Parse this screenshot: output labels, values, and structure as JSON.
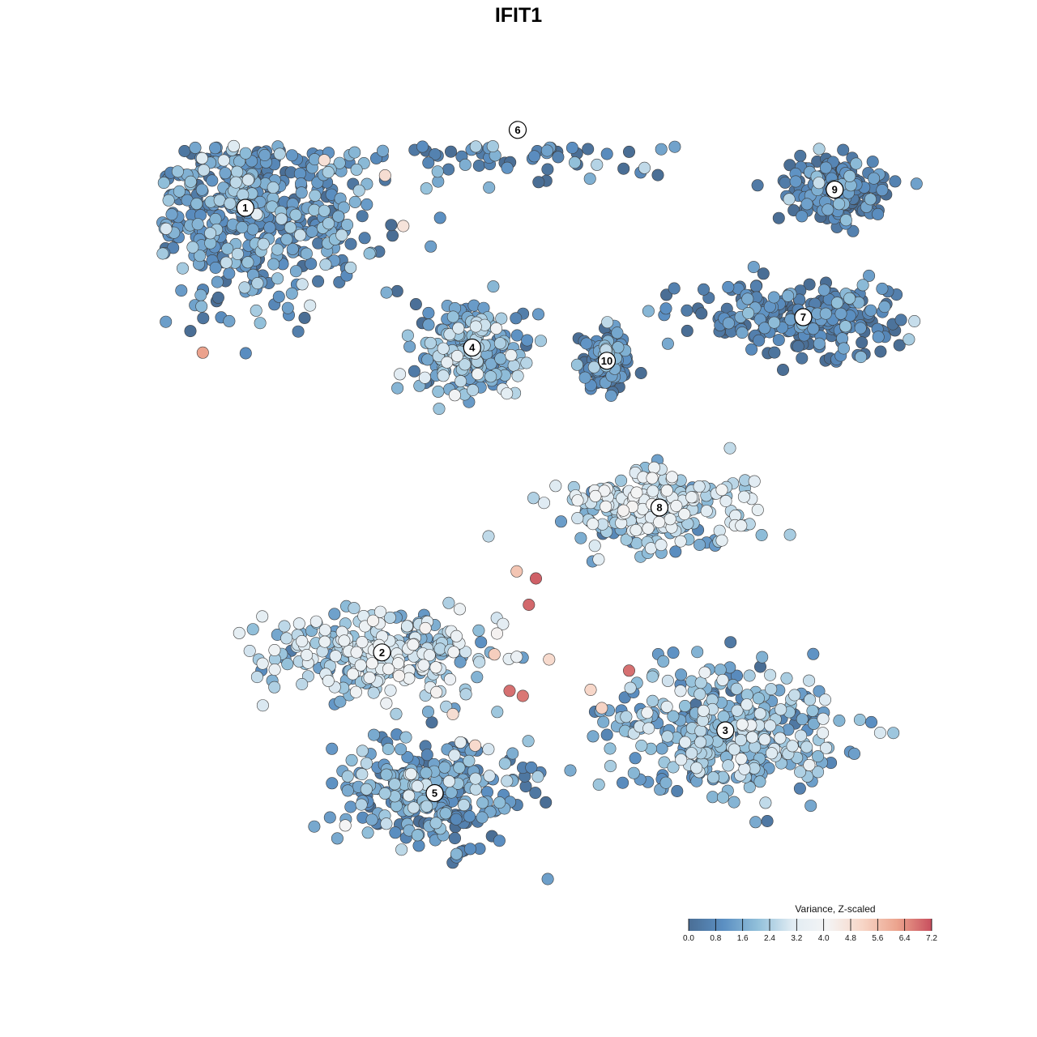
{
  "colors": {
    "stops": [
      "#4a6e95",
      "#5b8fc2",
      "#92c0da",
      "#e1ecf3",
      "#f4f4f4",
      "#f7d6c7",
      "#eca48e",
      "#c84f5e"
    ],
    "outline": "#3d3d3d"
  },
  "chart_data": {
    "type": "scatter",
    "title": "IFIT1",
    "xlabel": "",
    "ylabel": "",
    "grid": false,
    "legend_position": "bottom-right",
    "color_scale": {
      "title": "Variance, Z-scaled",
      "min": 0.0,
      "max": 7.2,
      "ticks": [
        "0.0",
        "0.8",
        "1.6",
        "2.4",
        "3.2",
        "4.0",
        "4.8",
        "5.6",
        "6.4",
        "7.2"
      ]
    },
    "clusters": [
      {
        "label": "1",
        "x": -2.49,
        "y": 2.82,
        "spread": [
          1.2,
          0.95
        ],
        "mean": 1.1
      },
      {
        "label": "2",
        "x": -1.14,
        "y": -1.57,
        "spread": [
          1.05,
          0.4
        ],
        "mean": 2.6
      },
      {
        "label": "3",
        "x": 2.25,
        "y": -2.34,
        "spread": [
          1.05,
          0.55
        ],
        "mean": 1.8
      },
      {
        "label": "4",
        "x": -0.25,
        "y": 1.44,
        "spread": [
          0.5,
          0.42
        ],
        "mean": 1.6
      },
      {
        "label": "5",
        "x": -0.62,
        "y": -2.96,
        "spread": [
          0.85,
          0.5
        ],
        "mean": 1.2
      },
      {
        "label": "6",
        "x": 0.2,
        "y": 3.59,
        "spread": [
          1.4,
          0.35
        ],
        "mean": 0.8
      },
      {
        "label": "7",
        "x": 3.02,
        "y": 1.74,
        "spread": [
          1.0,
          0.3
        ],
        "mean": 0.5
      },
      {
        "label": "8",
        "x": 1.6,
        "y": -0.14,
        "spread": [
          0.85,
          0.35
        ],
        "mean": 2.4
      },
      {
        "label": "9",
        "x": 3.33,
        "y": 3.0,
        "spread": [
          0.45,
          0.3
        ],
        "mean": 0.4
      },
      {
        "label": "10",
        "x": 1.08,
        "y": 1.31,
        "spread": [
          0.2,
          0.25
        ],
        "mean": 0.6
      }
    ],
    "hotspots": [
      {
        "x": 0.38,
        "y": -0.84,
        "value": 7.0
      },
      {
        "x": 0.31,
        "y": -1.1,
        "value": 6.9
      },
      {
        "x": 0.12,
        "y": -1.95,
        "value": 6.8
      },
      {
        "x": 0.25,
        "y": -2.0,
        "value": 6.7
      },
      {
        "x": 1.3,
        "y": -1.75,
        "value": 6.8
      },
      {
        "x": -2.91,
        "y": 1.39,
        "value": 6.2
      },
      {
        "x": 0.19,
        "y": -0.77,
        "value": 5.5
      },
      {
        "x": -1.71,
        "y": 3.29,
        "value": 4.8
      },
      {
        "x": -1.11,
        "y": 3.14,
        "value": 4.9
      },
      {
        "x": -0.93,
        "y": 2.64,
        "value": 4.7
      },
      {
        "x": 0.51,
        "y": -1.64,
        "value": 5.0
      },
      {
        "x": 0.92,
        "y": -1.94,
        "value": 5.1
      },
      {
        "x": -0.44,
        "y": -2.18,
        "value": 4.9
      },
      {
        "x": -0.22,
        "y": -2.49,
        "value": 5.0
      },
      {
        "x": 1.03,
        "y": -2.12,
        "value": 5.2
      },
      {
        "x": -0.03,
        "y": -1.59,
        "value": 5.3
      }
    ]
  }
}
